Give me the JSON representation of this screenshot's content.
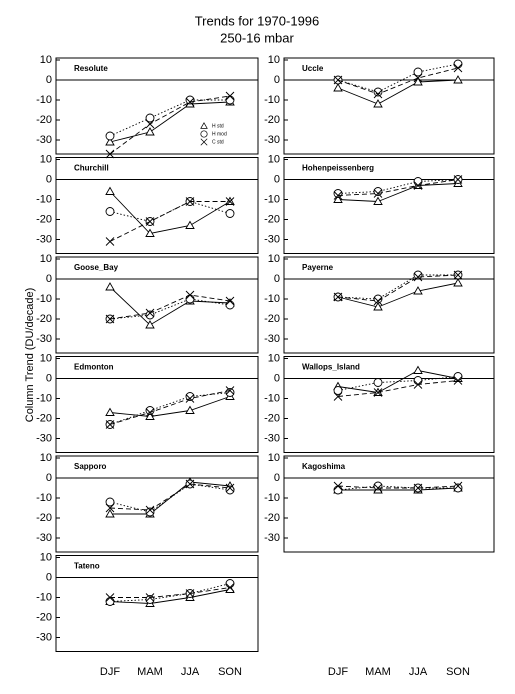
{
  "figure": {
    "title": "Trends for 1970-1996",
    "subtitle": "250-16 mbar",
    "y_label": "Column Trend (DU/decade)",
    "categories": [
      "DJF",
      "MAM",
      "JJA",
      "SON"
    ],
    "ylim": [
      -37,
      11
    ],
    "yticks": [
      10,
      0,
      -10,
      -20,
      -30
    ],
    "series_styles": [
      {
        "name": "H std",
        "marker": "triangle",
        "dash": "none"
      },
      {
        "name": "H mod",
        "marker": "circle",
        "dash": "1.5,2"
      },
      {
        "name": "C std",
        "marker": "cross",
        "dash": "5,3"
      }
    ],
    "legend_panel": 0,
    "color": "#000000"
  },
  "chart_data": [
    {
      "type": "line",
      "title": "Resolute",
      "series": [
        {
          "values": [
            -31,
            -26,
            -12,
            -11
          ]
        },
        {
          "values": [
            -28,
            -19,
            -10,
            -10
          ]
        },
        {
          "values": [
            -37,
            -22,
            -11,
            -8
          ]
        }
      ]
    },
    {
      "type": "line",
      "title": "Uccle",
      "series": [
        {
          "values": [
            -4,
            -12,
            -1,
            0
          ]
        },
        {
          "values": [
            0,
            -6,
            4,
            8
          ]
        },
        {
          "values": [
            0,
            -7,
            1,
            6
          ]
        }
      ]
    },
    {
      "type": "line",
      "title": "Churchill",
      "series": [
        {
          "values": [
            -6,
            -27,
            -23,
            -11
          ]
        },
        {
          "values": [
            -16,
            -21,
            -11,
            -17
          ]
        },
        {
          "values": [
            -31,
            -21,
            -11,
            -11
          ]
        }
      ]
    },
    {
      "type": "line",
      "title": "Hohenpeissenberg",
      "series": [
        {
          "values": [
            -10,
            -11,
            -3,
            -2
          ]
        },
        {
          "values": [
            -7,
            -6,
            -1,
            0
          ]
        },
        {
          "values": [
            -8,
            -7,
            -3,
            0
          ]
        }
      ]
    },
    {
      "type": "line",
      "title": "Goose_Bay",
      "series": [
        {
          "values": [
            -4,
            -23,
            -11,
            -12
          ]
        },
        {
          "values": [
            -20,
            -18,
            -10,
            -13
          ]
        },
        {
          "values": [
            -20,
            -17,
            -8,
            -11
          ]
        }
      ]
    },
    {
      "type": "line",
      "title": "Payerne",
      "series": [
        {
          "values": [
            -9,
            -14,
            -6,
            -2
          ]
        },
        {
          "values": [
            -9,
            -10,
            2,
            2
          ]
        },
        {
          "values": [
            -9,
            -11,
            1,
            2
          ]
        }
      ]
    },
    {
      "type": "line",
      "title": "Edmonton",
      "series": [
        {
          "values": [
            -17,
            -19,
            -16,
            -9
          ]
        },
        {
          "values": [
            -23,
            -16,
            -9,
            -7
          ]
        },
        {
          "values": [
            -23,
            -17,
            -10,
            -6
          ]
        }
      ]
    },
    {
      "type": "line",
      "title": "Wallops_Island",
      "series": [
        {
          "values": [
            -4,
            -7,
            4,
            0
          ]
        },
        {
          "values": [
            -6,
            -2,
            -1,
            1
          ]
        },
        {
          "values": [
            -9,
            -7,
            -3,
            -1
          ]
        }
      ]
    },
    {
      "type": "line",
      "title": "Sapporo",
      "series": [
        {
          "values": [
            -18,
            -18,
            -2,
            -4
          ]
        },
        {
          "values": [
            -12,
            -17,
            -3,
            -6
          ]
        },
        {
          "values": [
            -15,
            -16,
            -3,
            -5
          ]
        }
      ]
    },
    {
      "type": "line",
      "title": "Kagoshima",
      "series": [
        {
          "values": [
            -6,
            -6,
            -6,
            -5
          ]
        },
        {
          "values": [
            -6,
            -4,
            -5,
            -5
          ]
        },
        {
          "values": [
            -4,
            -5,
            -5,
            -4
          ]
        }
      ]
    },
    {
      "type": "line",
      "title": "Tateno",
      "series": [
        {
          "values": [
            -12,
            -13,
            -10,
            -6
          ]
        },
        {
          "values": [
            -12,
            -11,
            -8,
            -3
          ]
        },
        {
          "values": [
            -10,
            -10,
            -8,
            -5
          ]
        }
      ]
    }
  ]
}
